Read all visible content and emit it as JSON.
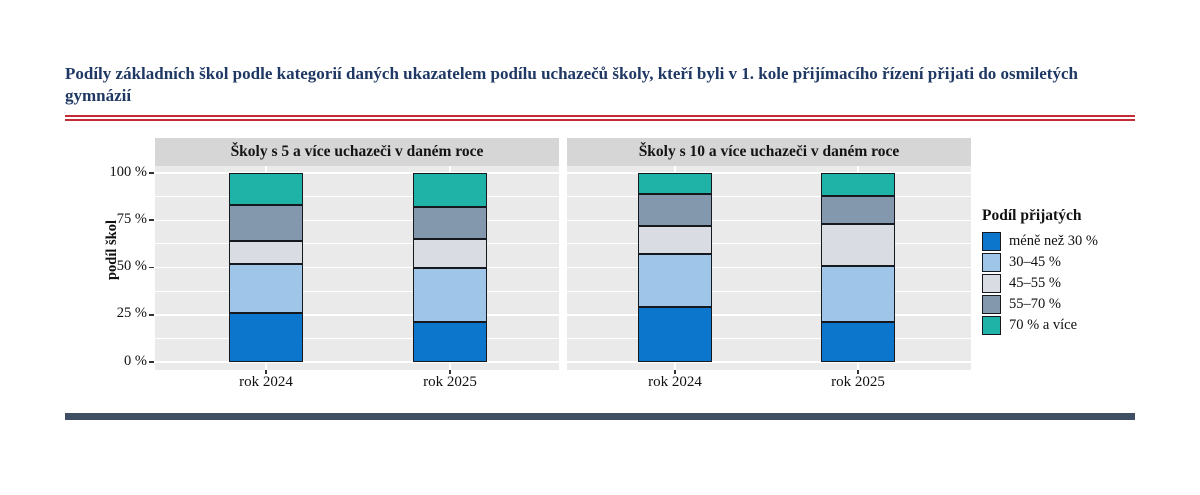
{
  "page": {
    "title": "Podíly základních škol podle kategorií daných ukazatelem podílu uchazečů školy, kteří byli v 1. kole přijímacího řízení přijati do osmiletých gymnázií",
    "title_color": "#1F3864",
    "accent_rule_color": "#C62A33",
    "footer_bar_color": "#3E4F63"
  },
  "chart_data": {
    "type": "bar",
    "stacked": true,
    "percent": true,
    "title": "",
    "ylabel": "podíl škol",
    "xlabel": "",
    "ylim": [
      0,
      100
    ],
    "y_ticks": [
      {
        "pct": 0,
        "label": "0 %"
      },
      {
        "pct": 25,
        "label": "25 %"
      },
      {
        "pct": 50,
        "label": "50 %"
      },
      {
        "pct": 75,
        "label": "75 %"
      },
      {
        "pct": 100,
        "label": "100 %"
      }
    ],
    "x_categories": [
      "rok 2024",
      "rok 2025"
    ],
    "legend_title": "Podíl přijatých",
    "legend_position": "right",
    "grid": "white major and minor horizontal lines on gray panel",
    "panel_colors": {
      "plot_bg": "#EAEAEA",
      "strip_bg": "#D6D6D6",
      "gridline": "#ffffff"
    },
    "series": [
      {
        "name": "méně než 30 %",
        "color": "#0B76CC"
      },
      {
        "name": "30–45 %",
        "color": "#9FC6E8"
      },
      {
        "name": "45–55 %",
        "color": "#D9DDE3"
      },
      {
        "name": "55–70 %",
        "color": "#8397AD"
      },
      {
        "name": "70 % a více",
        "color": "#1FB2A6"
      }
    ],
    "panels": [
      {
        "label": "Školy s 5 a více uchazeči v daném roce",
        "bars": [
          {
            "category": "rok 2024",
            "values": [
              26,
              26,
              12,
              19,
              17
            ]
          },
          {
            "category": "rok 2025",
            "values": [
              21,
              29,
              15,
              17,
              18
            ]
          }
        ]
      },
      {
        "label": "Školy s 10 a více uchazeči v daném roce",
        "bars": [
          {
            "category": "rok 2024",
            "values": [
              29,
              28,
              15,
              17,
              11
            ]
          },
          {
            "category": "rok 2025",
            "values": [
              21,
              30,
              22,
              15,
              12
            ]
          }
        ]
      }
    ]
  }
}
